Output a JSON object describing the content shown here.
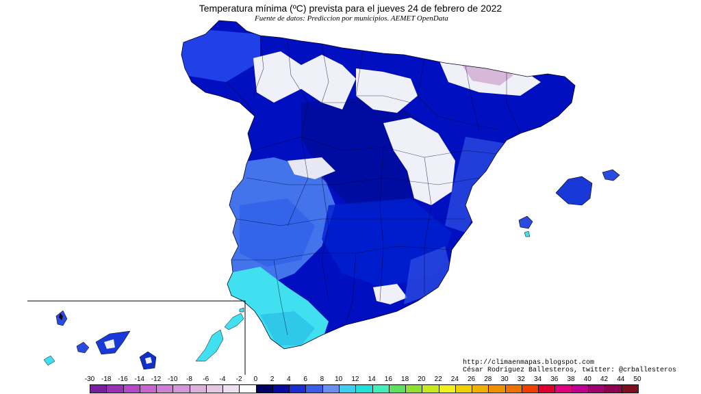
{
  "title": "Temperatura mínima (ºC) prevista para el jueves 24 de febrero de 2022",
  "subtitle": "Fuente de datos: Prediccion por municipios. AEMET OpenData",
  "credits": {
    "url": "http://climaenmapas.blogspot.com",
    "author": "César Rodríguez Ballesteros, twitter: @crballesteros"
  },
  "legend": {
    "ticks": [
      "-30",
      "-18",
      "-16",
      "-14",
      "-12",
      "-10",
      "-8",
      "-6",
      "-4",
      "-2",
      "0",
      "2",
      "4",
      "6",
      "8",
      "10",
      "12",
      "14",
      "16",
      "18",
      "20",
      "22",
      "24",
      "26",
      "28",
      "30",
      "32",
      "34",
      "36",
      "38",
      "40",
      "42",
      "44",
      "50"
    ],
    "colors": [
      "#7a1fa2",
      "#9b30b8",
      "#b548c8",
      "#c865cf",
      "#d07ed5",
      "#d595d8",
      "#dcb0dc",
      "#e4c8e4",
      "#efe0ef",
      "#ffffff",
      "#000066",
      "#0a0aa0",
      "#1a2fd2",
      "#3a5ee8",
      "#6a8ff0",
      "#3ecff0",
      "#20e0d8",
      "#40f0b8",
      "#60e060",
      "#90e030",
      "#c8e820",
      "#f0f020",
      "#f0d000",
      "#f0b000",
      "#f09000",
      "#f07000",
      "#f04000",
      "#e00030",
      "#e00080",
      "#c00090",
      "#a00070",
      "#900050",
      "#801020"
    ]
  },
  "colors": {
    "deep_blue": "#0000b4",
    "navy": "#000080",
    "medium_blue": "#2040e0",
    "light_blue": "#4a7ff0",
    "cyan": "#40e8f0",
    "snow": "#f0f0f8",
    "lilac": "#d8b8d8"
  }
}
